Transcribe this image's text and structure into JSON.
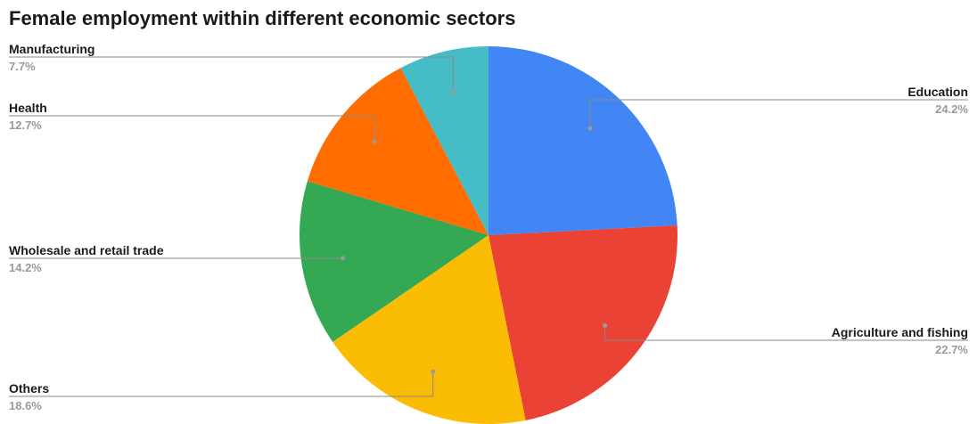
{
  "title": "Female employment within different economic sectors",
  "chart_data": {
    "type": "pie",
    "title": "Female employment within different economic sectors",
    "slices": [
      {
        "label": "Education",
        "value": 24.2,
        "display": "24.2%",
        "color": "#4285F4"
      },
      {
        "label": "Agriculture and fishing",
        "value": 22.7,
        "display": "22.7%",
        "color": "#EA4335"
      },
      {
        "label": "Others",
        "value": 18.6,
        "display": "18.6%",
        "color": "#FBBC04"
      },
      {
        "label": "Wholesale and retail trade",
        "value": 14.2,
        "display": "14.2%",
        "color": "#34A853"
      },
      {
        "label": "Health",
        "value": 12.7,
        "display": "12.7%",
        "color": "#FF6D01"
      },
      {
        "label": "Manufacturing",
        "value": 7.7,
        "display": "7.7%",
        "color": "#46BDC6"
      }
    ],
    "legend": "none",
    "label_style": "leader-lines"
  }
}
